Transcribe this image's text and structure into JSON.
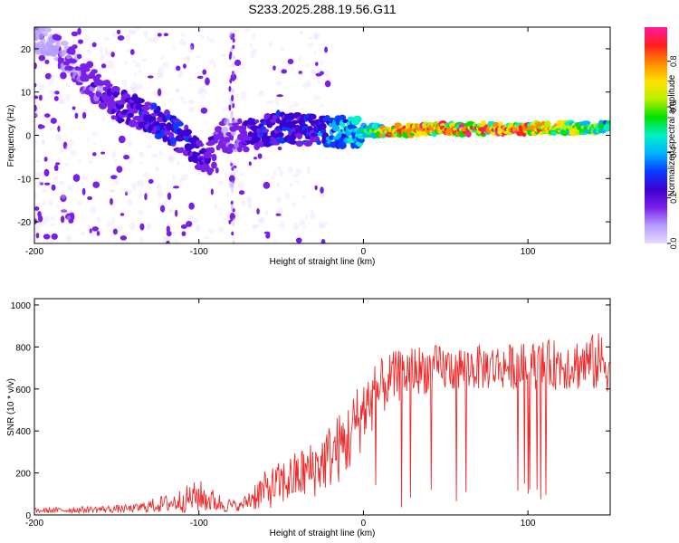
{
  "title": "S233.2025.288.19.56.G11",
  "colors": {
    "snr_line": "#ef2a2a",
    "frame": "#000000",
    "colormap": [
      "#e9d9ff",
      "#b59cff",
      "#7a1fe8",
      "#3d00d0",
      "#0a3cff",
      "#00b4ff",
      "#00f0c8",
      "#00e000",
      "#b8f000",
      "#ffe000",
      "#ff8a00",
      "#ff1e1e",
      "#ff1aa0"
    ]
  },
  "chart_data": [
    {
      "type": "heatmap",
      "name": "spectrogram",
      "xlabel": "Height of straight line (km)",
      "ylabel": "Frequency (Hz)",
      "xlim": [
        -200,
        150
      ],
      "ylim": [
        -25,
        25
      ],
      "xticks": [
        -200,
        -100,
        0,
        100
      ],
      "yticks": [
        20,
        10,
        0,
        -10,
        -20
      ],
      "colorbar": {
        "label": "Normalized spectral amplitude",
        "range": [
          0,
          0.95
        ],
        "ticks": [
          "0.0",
          "0.2",
          "0.4",
          "0.6",
          "0.8"
        ]
      },
      "ridge": [
        {
          "x": -200,
          "y": 23
        },
        {
          "x": -180,
          "y": 18
        },
        {
          "x": -165,
          "y": 12
        },
        {
          "x": -150,
          "y": 7
        },
        {
          "x": -135,
          "y": 5
        },
        {
          "x": -120,
          "y": 2
        },
        {
          "x": -105,
          "y": -2
        },
        {
          "x": -95,
          "y": -6
        },
        {
          "x": -85,
          "y": 0
        },
        {
          "x": -70,
          "y": 0
        },
        {
          "x": -50,
          "y": 2
        },
        {
          "x": -30,
          "y": 1
        },
        {
          "x": -10,
          "y": 1
        },
        {
          "x": 10,
          "y": 1
        },
        {
          "x": 50,
          "y": 1.5
        },
        {
          "x": 100,
          "y": 1.5
        },
        {
          "x": 150,
          "y": 2
        }
      ],
      "ridge_amplitude": [
        {
          "x": -200,
          "a": 0.08
        },
        {
          "x": -140,
          "a": 0.25
        },
        {
          "x": -120,
          "a": 0.3
        },
        {
          "x": -100,
          "a": 0.25
        },
        {
          "x": -80,
          "a": 0.15
        },
        {
          "x": -60,
          "a": 0.28
        },
        {
          "x": -30,
          "a": 0.28
        },
        {
          "x": -20,
          "a": 0.4
        },
        {
          "x": 0,
          "a": 0.5
        },
        {
          "x": 10,
          "a": 0.72
        },
        {
          "x": 20,
          "a": 0.86
        },
        {
          "x": 100,
          "a": 0.86
        },
        {
          "x": 150,
          "a": 0.55
        }
      ]
    },
    {
      "type": "line",
      "name": "snr",
      "xlabel": "Height of straight line (km)",
      "ylabel": "SNR (10 * v/v)",
      "xlim": [
        -200,
        150
      ],
      "ylim": [
        0,
        1030
      ],
      "xticks": [
        -200,
        -100,
        0,
        100
      ],
      "yticks": [
        0,
        200,
        400,
        600,
        800,
        1000
      ],
      "envelope": [
        {
          "x": -200,
          "mean": 20,
          "spread": 12
        },
        {
          "x": -140,
          "mean": 30,
          "spread": 20
        },
        {
          "x": -115,
          "mean": 60,
          "spread": 50
        },
        {
          "x": -100,
          "mean": 90,
          "spread": 80
        },
        {
          "x": -85,
          "mean": 50,
          "spread": 40
        },
        {
          "x": -75,
          "mean": 40,
          "spread": 20
        },
        {
          "x": -65,
          "mean": 100,
          "spread": 80
        },
        {
          "x": -50,
          "mean": 150,
          "spread": 110
        },
        {
          "x": -30,
          "mean": 220,
          "spread": 140
        },
        {
          "x": -10,
          "mean": 350,
          "spread": 180
        },
        {
          "x": 0,
          "mean": 500,
          "spread": 180
        },
        {
          "x": 15,
          "mean": 640,
          "spread": 130
        },
        {
          "x": 30,
          "mean": 690,
          "spread": 120
        },
        {
          "x": 60,
          "mean": 700,
          "spread": 110
        },
        {
          "x": 100,
          "mean": 710,
          "spread": 110
        },
        {
          "x": 130,
          "mean": 720,
          "spread": 130
        },
        {
          "x": 150,
          "mean": 730,
          "spread": 150
        }
      ]
    }
  ]
}
